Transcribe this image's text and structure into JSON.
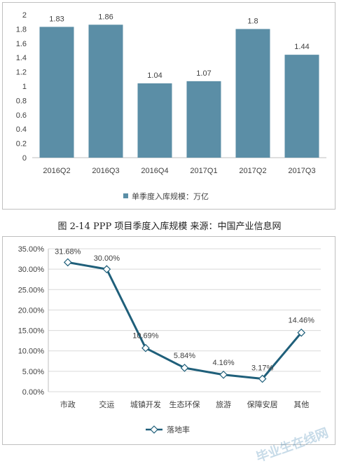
{
  "caption": "图 2-14  PPP 项目季度入库规模 来源：中国产业信息网",
  "watermark": "毕业生在线网",
  "colors": {
    "bar": "#5b8ea6",
    "line": "#1f5f7a",
    "axis": "#bfbfbf",
    "grid": "#d9d9d9"
  },
  "chart_data": [
    {
      "type": "bar",
      "categories": [
        "2016Q2",
        "2016Q3",
        "2016Q4",
        "2017Q1",
        "2017Q2",
        "2017Q3"
      ],
      "series": [
        {
          "name": "单季度入库规模：万亿",
          "values": [
            1.83,
            1.86,
            1.04,
            1.07,
            1.8,
            1.44
          ]
        }
      ],
      "data_labels": [
        "1.83",
        "1.86",
        "1.04",
        "1.07",
        "1.8",
        "1.44"
      ],
      "y_ticks": [
        "0",
        "0.2",
        "0.4",
        "0.6",
        "0.8",
        "1",
        "1.2",
        "1.4",
        "1.6",
        "1.8",
        "2"
      ],
      "ylim": [
        0,
        2
      ],
      "grid": false,
      "legend": "bottom"
    },
    {
      "type": "line",
      "categories": [
        "市政",
        "交运",
        "城镇开发",
        "生态环保",
        "旅游",
        "保障安居",
        "其他"
      ],
      "series": [
        {
          "name": "落地率",
          "values": [
            31.68,
            30.0,
            10.69,
            5.84,
            4.16,
            3.17,
            14.46
          ]
        }
      ],
      "data_labels": [
        "31.68%",
        "30.00%",
        "10.69%",
        "5.84%",
        "4.16%",
        "3.17%",
        "14.46%"
      ],
      "y_ticks": [
        "0.00%",
        "5.00%",
        "10.00%",
        "15.00%",
        "20.00%",
        "25.00%",
        "30.00%",
        "35.00%"
      ],
      "ylim": [
        0,
        35
      ],
      "grid": true,
      "legend": "bottom"
    }
  ]
}
